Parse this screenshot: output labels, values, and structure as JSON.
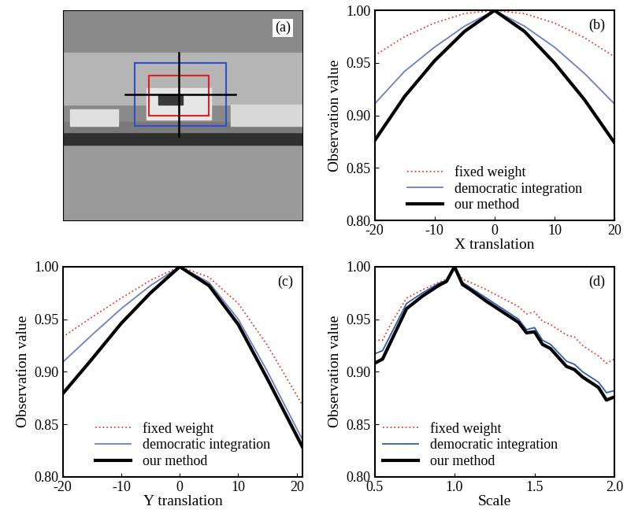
{
  "chart_data": [
    {
      "type": "image",
      "annotation": "(a)"
    },
    {
      "type": "line",
      "annotation": "(b)",
      "x_label": "X translation",
      "y_label": "Observation value",
      "x": [
        -20,
        -15,
        -10,
        -5,
        0,
        5,
        10,
        15,
        20
      ],
      "xlim": [
        -20,
        20
      ],
      "xticks": [
        -20,
        -10,
        0,
        10,
        20
      ],
      "ylim": [
        0.8,
        1.0
      ],
      "yticks": [
        {
          "value": 0.8,
          "label": "0.80"
        },
        {
          "value": 0.85,
          "label": "0.85"
        },
        {
          "value": 0.9,
          "label": "0.90"
        },
        {
          "value": 0.95,
          "label": "0.95"
        },
        {
          "value": 1.0,
          "label": "1.00"
        }
      ],
      "legend": "lower center",
      "series": [
        {
          "name": "fixed weight",
          "color": "#e8422f",
          "line_style": "dotted",
          "values": [
            0.957,
            0.975,
            0.988,
            0.997,
            1.0,
            0.997,
            0.988,
            0.974,
            0.956
          ]
        },
        {
          "name": "democratic integration",
          "color": "#6b7fc4",
          "line_style": "solid",
          "values": [
            0.911,
            0.942,
            0.965,
            0.985,
            1.0,
            0.985,
            0.965,
            0.94,
            0.911
          ]
        },
        {
          "name": "our method",
          "color": "#000000",
          "line_style": "solid",
          "values": [
            0.876,
            0.918,
            0.952,
            0.98,
            1.0,
            0.98,
            0.95,
            0.915,
            0.874
          ]
        }
      ]
    },
    {
      "type": "line",
      "annotation": "(c)",
      "x_label": "Y translation",
      "y_label": "Observation value",
      "x": [
        -20,
        -15,
        -10,
        -5,
        0,
        5,
        10,
        15,
        21
      ],
      "xlim": [
        -20,
        21
      ],
      "xticks": [
        -20,
        -10,
        0,
        10,
        20
      ],
      "ylim": [
        0.8,
        1.0
      ],
      "yticks": [
        {
          "value": 0.8,
          "label": "0.80"
        },
        {
          "value": 0.85,
          "label": "0.85"
        },
        {
          "value": 0.9,
          "label": "0.90"
        },
        {
          "value": 0.95,
          "label": "0.95"
        },
        {
          "value": 1.0,
          "label": "1.00"
        }
      ],
      "legend": "lower center",
      "series": [
        {
          "name": "fixed weight",
          "color": "#e8422f",
          "line_style": "dotted",
          "values": [
            0.933,
            0.952,
            0.97,
            0.987,
            1.0,
            0.99,
            0.965,
            0.925,
            0.868
          ]
        },
        {
          "name": "democratic integration",
          "color": "#6b7fc4",
          "line_style": "solid",
          "values": [
            0.909,
            0.935,
            0.96,
            0.982,
            1.0,
            0.985,
            0.95,
            0.9,
            0.835
          ]
        },
        {
          "name": "our method",
          "color": "#000000",
          "line_style": "solid",
          "values": [
            0.879,
            0.912,
            0.946,
            0.975,
            1.0,
            0.982,
            0.945,
            0.893,
            0.828
          ]
        }
      ]
    },
    {
      "type": "line",
      "annotation": "(d)",
      "x_label": "Scale",
      "y_label": "Observation value",
      "x": [
        0.5,
        0.55,
        0.6,
        0.7,
        0.8,
        0.9,
        0.95,
        1.0,
        1.05,
        1.1,
        1.2,
        1.3,
        1.4,
        1.45,
        1.5,
        1.55,
        1.6,
        1.7,
        1.75,
        1.8,
        1.9,
        1.95,
        2.0
      ],
      "xlim": [
        0.5,
        2.0
      ],
      "xticks": [
        0.5,
        {
          "value": 1.0,
          "label": "1.0"
        },
        1.5,
        {
          "value": 2.0,
          "label": "2.0"
        }
      ],
      "ylim": [
        0.8,
        1.0
      ],
      "yticks": [
        {
          "value": 0.8,
          "label": "0.80"
        },
        {
          "value": 0.85,
          "label": "0.85"
        },
        {
          "value": 0.9,
          "label": "0.90"
        },
        {
          "value": 0.95,
          "label": "0.95"
        },
        {
          "value": 1.0,
          "label": "1.00"
        }
      ],
      "legend": "lower left",
      "series": [
        {
          "name": "fixed weight",
          "color": "#e8422f",
          "line_style": "dotted",
          "values": [
            0.93,
            0.93,
            0.945,
            0.97,
            0.978,
            0.985,
            0.988,
            1.0,
            0.988,
            0.985,
            0.978,
            0.97,
            0.962,
            0.955,
            0.957,
            0.948,
            0.945,
            0.935,
            0.933,
            0.925,
            0.915,
            0.908,
            0.912
          ]
        },
        {
          "name": "democratic integration",
          "color": "#2f5fae",
          "line_style": "solid",
          "values": [
            0.917,
            0.92,
            0.935,
            0.965,
            0.975,
            0.984,
            0.987,
            1.0,
            0.985,
            0.98,
            0.97,
            0.96,
            0.95,
            0.94,
            0.942,
            0.93,
            0.926,
            0.91,
            0.907,
            0.9,
            0.89,
            0.88,
            0.882
          ]
        },
        {
          "name": "our method",
          "color": "#000000",
          "line_style": "solid",
          "values": [
            0.908,
            0.912,
            0.928,
            0.96,
            0.972,
            0.982,
            0.986,
            1.0,
            0.983,
            0.978,
            0.967,
            0.957,
            0.947,
            0.937,
            0.938,
            0.926,
            0.922,
            0.905,
            0.902,
            0.895,
            0.885,
            0.873,
            0.876
          ]
        }
      ]
    }
  ]
}
